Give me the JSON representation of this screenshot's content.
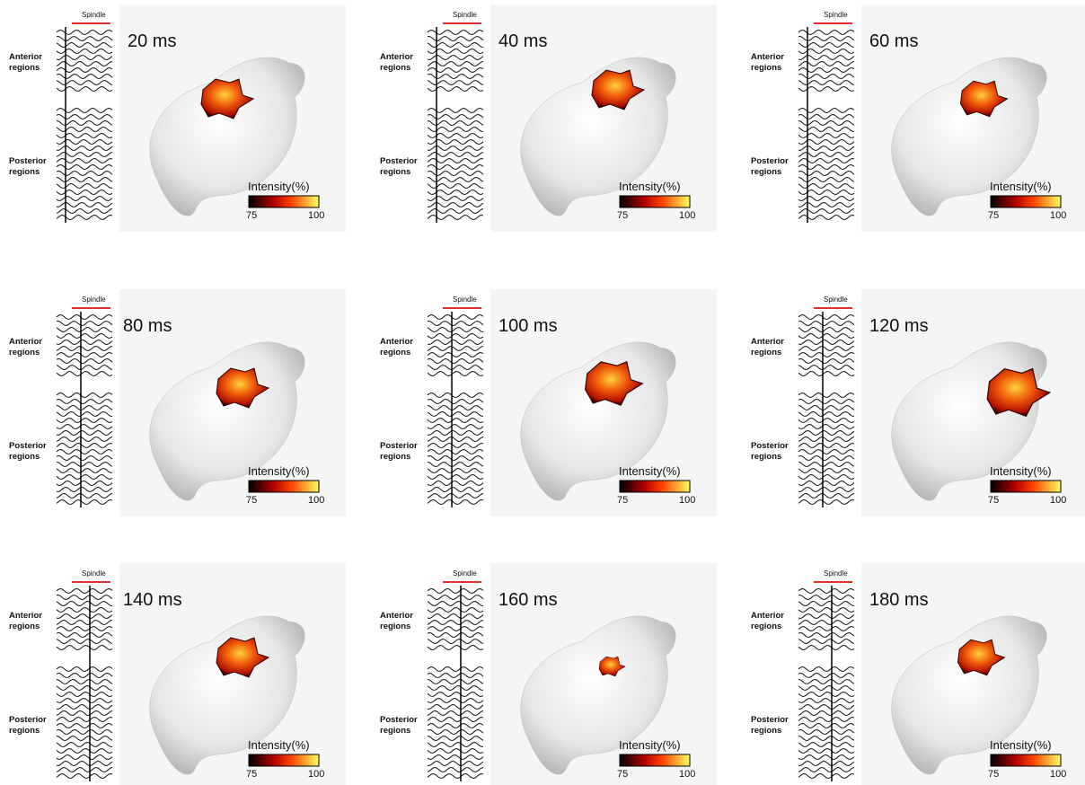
{
  "panels": [
    {
      "time": "20 ms",
      "spindle": "Spindle",
      "anterior": "Anterior regions",
      "posterior": "Posterior regions",
      "colorbar_title": "Intensity(%)",
      "colorbar_min": 75,
      "colorbar_max": 100
    },
    {
      "time": "40 ms",
      "spindle": "Spindle",
      "anterior": "Anterior regions",
      "posterior": "Posterior regions",
      "colorbar_title": "Intensity(%)",
      "colorbar_min": 75,
      "colorbar_max": 100
    },
    {
      "time": "60 ms",
      "spindle": "Spindle",
      "anterior": "Anterior regions",
      "posterior": "Posterior regions",
      "colorbar_title": "Intensity(%)",
      "colorbar_min": 75,
      "colorbar_max": 100
    },
    {
      "time": "80 ms",
      "spindle": "Spindle",
      "anterior": "Anterior regions",
      "posterior": "Posterior regions",
      "colorbar_title": "Intensity(%)",
      "colorbar_min": 75,
      "colorbar_max": 100
    },
    {
      "time": "100 ms",
      "spindle": "Spindle",
      "anterior": "Anterior regions",
      "posterior": "Posterior regions",
      "colorbar_title": "Intensity(%)",
      "colorbar_min": 75,
      "colorbar_max": 100
    },
    {
      "time": "120 ms",
      "spindle": "Spindle",
      "anterior": "Anterior regions",
      "posterior": "Posterior regions",
      "colorbar_title": "Intensity(%)",
      "colorbar_min": 75,
      "colorbar_max": 100
    },
    {
      "time": "140 ms",
      "spindle": "Spindle",
      "anterior": "Anterior regions",
      "posterior": "Posterior regions",
      "colorbar_title": "Intensity(%)",
      "colorbar_min": 75,
      "colorbar_max": 100
    },
    {
      "time": "160 ms",
      "spindle": "Spindle",
      "anterior": "Anterior regions",
      "posterior": "Posterior regions",
      "colorbar_title": "Intensity(%)",
      "colorbar_min": 75,
      "colorbar_max": 100
    },
    {
      "time": "180 ms",
      "spindle": "Spindle",
      "anterior": "Anterior regions",
      "posterior": "Posterior regions",
      "colorbar_title": "Intensity(%)",
      "colorbar_min": 75,
      "colorbar_max": 100
    }
  ]
}
